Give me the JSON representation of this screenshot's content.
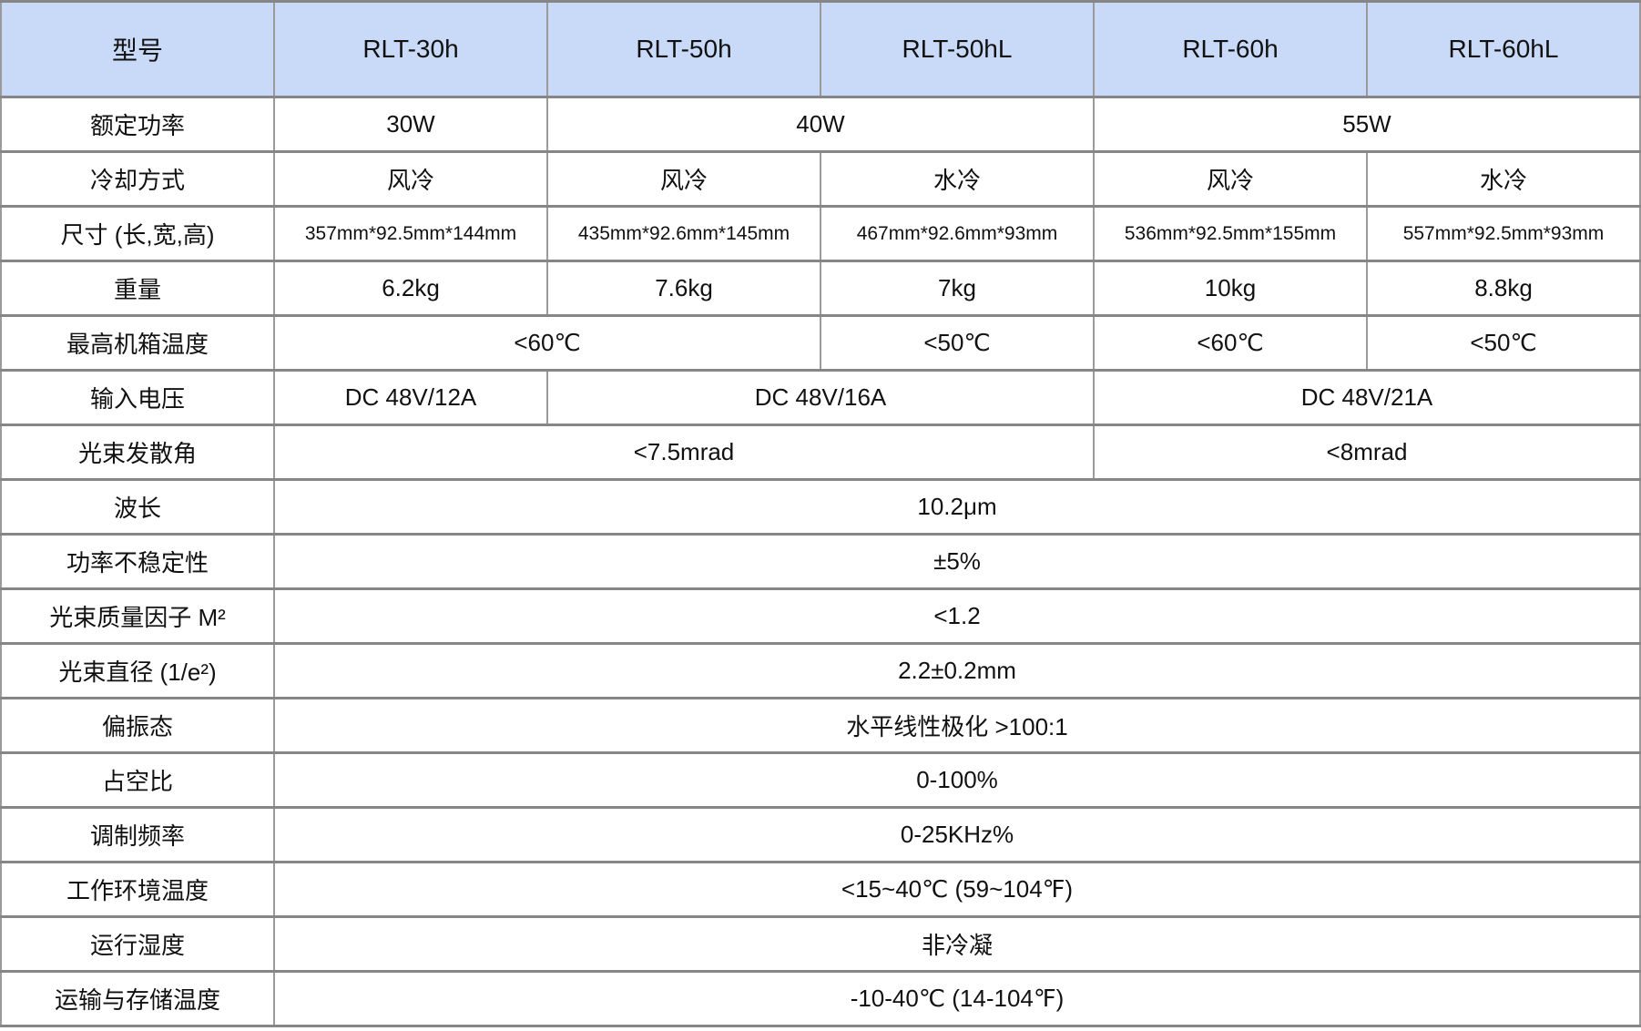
{
  "table": {
    "header": {
      "model_label": "型号",
      "models": [
        "RLT-30h",
        "RLT-50h",
        "RLT-50hL",
        "RLT-60h",
        "RLT-60hL"
      ]
    },
    "rows": [
      {
        "label": "额定功率",
        "cells": [
          "30W",
          "40W",
          "55W"
        ]
      },
      {
        "label": "冷却方式",
        "cells": [
          "风冷",
          "风冷",
          "水冷",
          "风冷",
          "水冷"
        ]
      },
      {
        "label": "尺寸 (长,宽,高)",
        "cells": [
          "357mm*92.5mm*144mm",
          "435mm*92.6mm*145mm",
          "467mm*92.6mm*93mm",
          "536mm*92.5mm*155mm",
          "557mm*92.5mm*93mm"
        ]
      },
      {
        "label": "重量",
        "cells": [
          "6.2kg",
          "7.6kg",
          "7kg",
          "10kg",
          "8.8kg"
        ]
      },
      {
        "label": "最高机箱温度",
        "cells": [
          "<60℃",
          "<50℃",
          "<60℃",
          "<50℃"
        ]
      },
      {
        "label": "输入电压",
        "cells": [
          "DC 48V/12A",
          "DC 48V/16A",
          "DC 48V/21A"
        ]
      },
      {
        "label": "光束发散角",
        "cells": [
          "<7.5mrad",
          "<8mrad"
        ]
      },
      {
        "label": "波长",
        "cells": [
          "10.2μm"
        ]
      },
      {
        "label": "功率不稳定性",
        "cells": [
          "±5%"
        ]
      },
      {
        "label": "光束质量因子 M²",
        "cells": [
          "<1.2"
        ]
      },
      {
        "label": "光束直径 (1/e²)",
        "cells": [
          "2.2±0.2mm"
        ]
      },
      {
        "label": "偏振态",
        "cells": [
          "水平线性极化 >100:1"
        ]
      },
      {
        "label": "占空比",
        "cells": [
          "0-100%"
        ]
      },
      {
        "label": "调制频率",
        "cells": [
          "0-25KHz%"
        ]
      },
      {
        "label": "工作环境温度",
        "cells": [
          "<15~40℃ (59~104℉)"
        ]
      },
      {
        "label": "运行湿度",
        "cells": [
          "非冷凝"
        ]
      },
      {
        "label": "运输与存储温度",
        "cells": [
          "-10-40℃ (14-104℉)"
        ]
      }
    ]
  },
  "colors": {
    "header_bg": "#c9daf8",
    "border_horizontal": "#868686",
    "border_vertical": "#9a9a9a",
    "text": "#111111"
  },
  "chart_data": {
    "type": "table",
    "title": "激光器型号规格表",
    "columns": [
      "型号",
      "RLT-30h",
      "RLT-50h",
      "RLT-50hL",
      "RLT-60h",
      "RLT-60hL"
    ],
    "rows": [
      [
        "额定功率",
        "30W",
        "40W",
        "40W",
        "55W",
        "55W"
      ],
      [
        "冷却方式",
        "风冷",
        "风冷",
        "水冷",
        "风冷",
        "水冷"
      ],
      [
        "尺寸 (长,宽,高)",
        "357mm*92.5mm*144mm",
        "435mm*92.6mm*145mm",
        "467mm*92.6mm*93mm",
        "536mm*92.5mm*155mm",
        "557mm*92.5mm*93mm"
      ],
      [
        "重量",
        "6.2kg",
        "7.6kg",
        "7kg",
        "10kg",
        "8.8kg"
      ],
      [
        "最高机箱温度",
        "<60℃",
        "<60℃",
        "<50℃",
        "<60℃",
        "<50℃"
      ],
      [
        "输入电压",
        "DC 48V/12A",
        "DC 48V/16A",
        "DC 48V/16A",
        "DC 48V/21A",
        "DC 48V/21A"
      ],
      [
        "光束发散角",
        "<7.5mrad",
        "<7.5mrad",
        "<7.5mrad",
        "<8mrad",
        "<8mrad"
      ],
      [
        "波长",
        "10.2μm",
        "10.2μm",
        "10.2μm",
        "10.2μm",
        "10.2μm"
      ],
      [
        "功率不稳定性",
        "±5%",
        "±5%",
        "±5%",
        "±5%",
        "±5%"
      ],
      [
        "光束质量因子 M²",
        "<1.2",
        "<1.2",
        "<1.2",
        "<1.2",
        "<1.2"
      ],
      [
        "光束直径 (1/e²)",
        "2.2±0.2mm",
        "2.2±0.2mm",
        "2.2±0.2mm",
        "2.2±0.2mm",
        "2.2±0.2mm"
      ],
      [
        "偏振态",
        "水平线性极化 >100:1",
        "水平线性极化 >100:1",
        "水平线性极化 >100:1",
        "水平线性极化 >100:1",
        "水平线性极化 >100:1"
      ],
      [
        "占空比",
        "0-100%",
        "0-100%",
        "0-100%",
        "0-100%",
        "0-100%"
      ],
      [
        "调制频率",
        "0-25KHz%",
        "0-25KHz%",
        "0-25KHz%",
        "0-25KHz%",
        "0-25KHz%"
      ],
      [
        "工作环境温度",
        "<15~40℃ (59~104℉)",
        "<15~40℃ (59~104℉)",
        "<15~40℃ (59~104℉)",
        "<15~40℃ (59~104℉)",
        "<15~40℃ (59~104℉)"
      ],
      [
        "运行湿度",
        "非冷凝",
        "非冷凝",
        "非冷凝",
        "非冷凝",
        "非冷凝"
      ],
      [
        "运输与存储温度",
        "-10-40℃ (14-104℉)",
        "-10-40℃ (14-104℉)",
        "-10-40℃ (14-104℉)",
        "-10-40℃ (14-104℉)",
        "-10-40℃ (14-104℉)"
      ]
    ],
    "layout": {
      "merged_cells": [
        {
          "row": "额定功率",
          "value": "40W",
          "spans": [
            "RLT-50h",
            "RLT-50hL"
          ]
        },
        {
          "row": "额定功率",
          "value": "55W",
          "spans": [
            "RLT-60h",
            "RLT-60hL"
          ]
        },
        {
          "row": "最高机箱温度",
          "value": "<60℃",
          "spans": [
            "RLT-30h",
            "RLT-50h"
          ]
        },
        {
          "row": "输入电压",
          "value": "DC 48V/16A",
          "spans": [
            "RLT-50h",
            "RLT-50hL"
          ]
        },
        {
          "row": "输入电压",
          "value": "DC 48V/21A",
          "spans": [
            "RLT-60h",
            "RLT-60hL"
          ]
        },
        {
          "row": "光束发散角",
          "value": "<7.5mrad",
          "spans": [
            "RLT-30h",
            "RLT-50h",
            "RLT-50hL"
          ]
        },
        {
          "row": "光束发散角",
          "value": "<8mrad",
          "spans": [
            "RLT-60h",
            "RLT-60hL"
          ]
        }
      ],
      "header_background": "#c9daf8",
      "grid": true
    }
  }
}
